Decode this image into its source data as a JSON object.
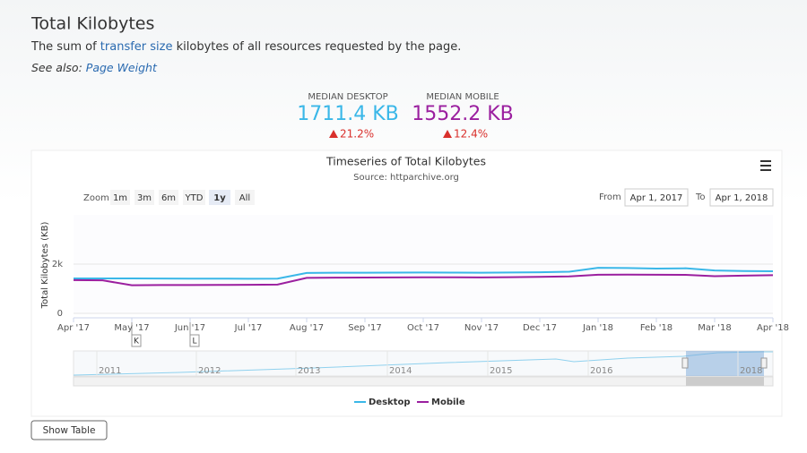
{
  "header": {
    "title": "Total Kilobytes",
    "description_before": "The sum of",
    "description_link": "transfer size",
    "description_after": "kilobytes of all resources requested by the page.",
    "see_also_label": "See also:",
    "see_also_link": "Page Weight"
  },
  "metrics": [
    {
      "label": "MEDIAN DESKTOP",
      "value": "1711.4 KB",
      "change": "21.2%"
    },
    {
      "label": "MEDIAN MOBILE",
      "value": "1552.2 KB",
      "change": "12.4%"
    }
  ],
  "controls": {
    "zoom_label": "Zoom",
    "zoom_buttons": [
      "1m",
      "3m",
      "6m",
      "YTD",
      "1y",
      "All"
    ],
    "from_label": "From",
    "from_value": "Apr 1, 2017",
    "to_label": "To",
    "to_value": "Apr 1, 2018"
  },
  "flags": [
    "K",
    "L"
  ],
  "navigator_labels": [
    "2011",
    "2012",
    "2013",
    "2014",
    "2015",
    "2016",
    "2018"
  ],
  "show_table": "Show Table",
  "chart_data": {
    "type": "line",
    "title": "Timeseries of Total Kilobytes",
    "subtitle": "Source: httparchive.org",
    "y_label": "Total Kilobytes (KB)",
    "categories": [
      "Apr '17",
      null,
      "May '17",
      null,
      "Jun '17",
      null,
      "Jul '17",
      null,
      "Aug '17",
      null,
      "Sep '17",
      null,
      "Oct '17",
      null,
      "Nov '17",
      null,
      "Dec '17",
      null,
      "Jan '18",
      null,
      "Feb '18",
      null,
      "Mar '18",
      null,
      "Apr '18"
    ],
    "series": [
      {
        "name": "Desktop",
        "color": "#3ab7e8",
        "values": [
          1420,
          1420,
          1420,
          1415,
          1410,
          1410,
          1405,
          1410,
          1640,
          1650,
          1650,
          1655,
          1660,
          1655,
          1650,
          1660,
          1670,
          1690,
          1850,
          1840,
          1820,
          1830,
          1740,
          1720,
          1711
        ]
      },
      {
        "name": "Mobile",
        "color": "#9b1f9f",
        "values": [
          1350,
          1340,
          1140,
          1150,
          1150,
          1155,
          1160,
          1170,
          1440,
          1450,
          1455,
          1460,
          1465,
          1465,
          1460,
          1470,
          1480,
          1500,
          1570,
          1575,
          1570,
          1565,
          1510,
          1530,
          1552
        ]
      }
    ],
    "ylim": [
      0,
      4000
    ],
    "yticks": [
      0,
      {
        "value": 2000,
        "label": "2k"
      }
    ],
    "grid": true,
    "legend": "bottom"
  }
}
